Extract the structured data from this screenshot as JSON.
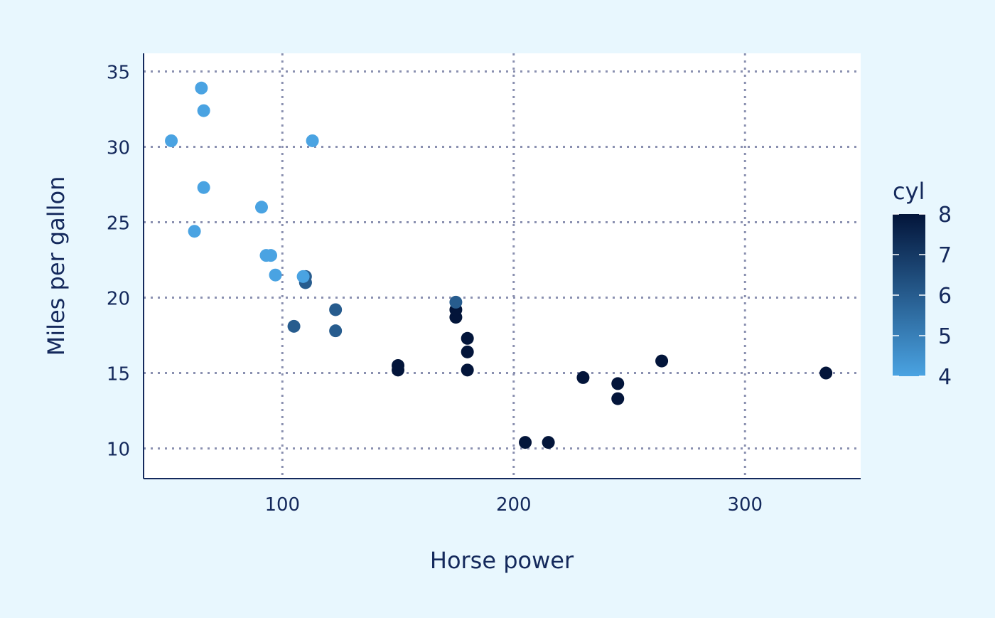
{
  "colors": {
    "background": "#e8f7fe",
    "panel": "#ffffff",
    "grid": "#8a90b0",
    "axis": "#14295c",
    "text": "#14295c",
    "scale_low": "#4aa3e2",
    "scale_high": "#03153a"
  },
  "chart_data": {
    "type": "scatter",
    "xlabel": "Horse power",
    "ylabel": "Miles per gallon",
    "xlim": [
      40,
      350
    ],
    "ylim": [
      8,
      36.2
    ],
    "xticks": [
      100,
      200,
      300
    ],
    "yticks": [
      10,
      15,
      20,
      25,
      30,
      35
    ],
    "grid": true,
    "grid_style": "dotted",
    "legend": {
      "title": "cyl",
      "type": "continuous-colorbar",
      "placement": "right",
      "range": [
        4,
        8
      ],
      "ticks": [
        4,
        5,
        6,
        7,
        8
      ]
    },
    "points": [
      {
        "x": 110,
        "y": 21.0,
        "cyl": 6
      },
      {
        "x": 110,
        "y": 21.0,
        "cyl": 6
      },
      {
        "x": 93,
        "y": 22.8,
        "cyl": 4
      },
      {
        "x": 110,
        "y": 21.4,
        "cyl": 6
      },
      {
        "x": 175,
        "y": 18.7,
        "cyl": 8
      },
      {
        "x": 105,
        "y": 18.1,
        "cyl": 6
      },
      {
        "x": 245,
        "y": 14.3,
        "cyl": 8
      },
      {
        "x": 62,
        "y": 24.4,
        "cyl": 4
      },
      {
        "x": 95,
        "y": 22.8,
        "cyl": 4
      },
      {
        "x": 123,
        "y": 19.2,
        "cyl": 6
      },
      {
        "x": 123,
        "y": 17.8,
        "cyl": 6
      },
      {
        "x": 180,
        "y": 16.4,
        "cyl": 8
      },
      {
        "x": 180,
        "y": 17.3,
        "cyl": 8
      },
      {
        "x": 180,
        "y": 15.2,
        "cyl": 8
      },
      {
        "x": 205,
        "y": 10.4,
        "cyl": 8
      },
      {
        "x": 215,
        "y": 10.4,
        "cyl": 8
      },
      {
        "x": 230,
        "y": 14.7,
        "cyl": 8
      },
      {
        "x": 66,
        "y": 32.4,
        "cyl": 4
      },
      {
        "x": 52,
        "y": 30.4,
        "cyl": 4
      },
      {
        "x": 65,
        "y": 33.9,
        "cyl": 4
      },
      {
        "x": 97,
        "y": 21.5,
        "cyl": 4
      },
      {
        "x": 150,
        "y": 15.5,
        "cyl": 8
      },
      {
        "x": 150,
        "y": 15.2,
        "cyl": 8
      },
      {
        "x": 245,
        "y": 13.3,
        "cyl": 8
      },
      {
        "x": 175,
        "y": 19.2,
        "cyl": 8
      },
      {
        "x": 66,
        "y": 27.3,
        "cyl": 4
      },
      {
        "x": 91,
        "y": 26.0,
        "cyl": 4
      },
      {
        "x": 113,
        "y": 30.4,
        "cyl": 4
      },
      {
        "x": 264,
        "y": 15.8,
        "cyl": 8
      },
      {
        "x": 175,
        "y": 19.7,
        "cyl": 6
      },
      {
        "x": 335,
        "y": 15.0,
        "cyl": 8
      },
      {
        "x": 109,
        "y": 21.4,
        "cyl": 4
      }
    ]
  }
}
